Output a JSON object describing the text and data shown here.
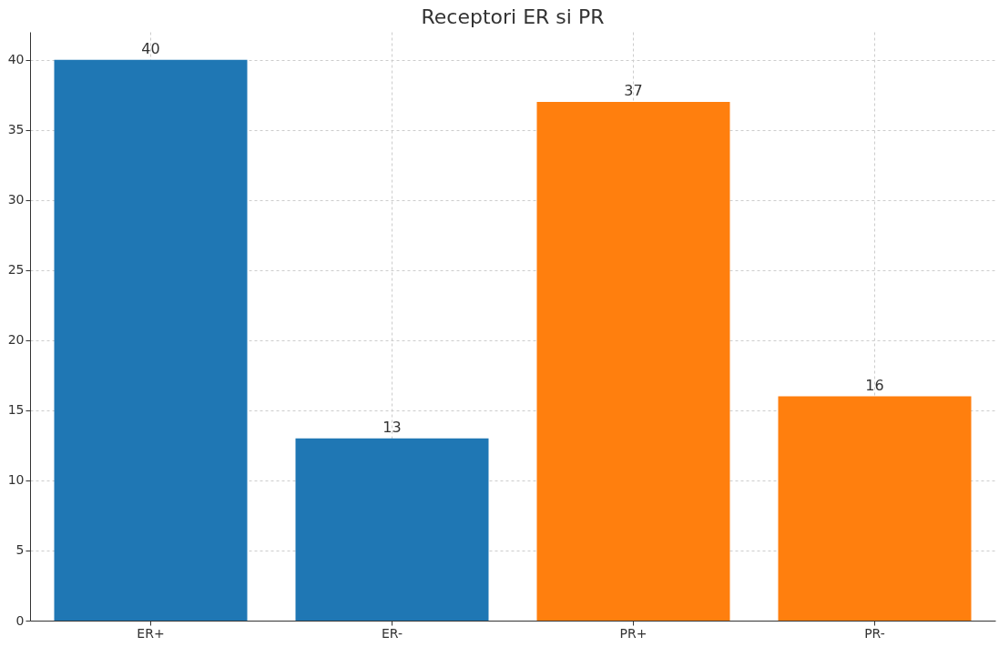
{
  "chart_data": {
    "type": "bar",
    "title": "Receptori ER si PR",
    "categories": [
      "ER+",
      "ER-",
      "PR+",
      "PR-"
    ],
    "values": [
      40,
      13,
      37,
      16
    ],
    "colors": [
      "#1f77b4",
      "#1f77b4",
      "#ff7f0e",
      "#ff7f0e"
    ],
    "ylim": [
      0,
      42
    ],
    "yticks": [
      0,
      5,
      10,
      15,
      20,
      25,
      30,
      35,
      40
    ],
    "grid": true,
    "data_labels": true
  }
}
